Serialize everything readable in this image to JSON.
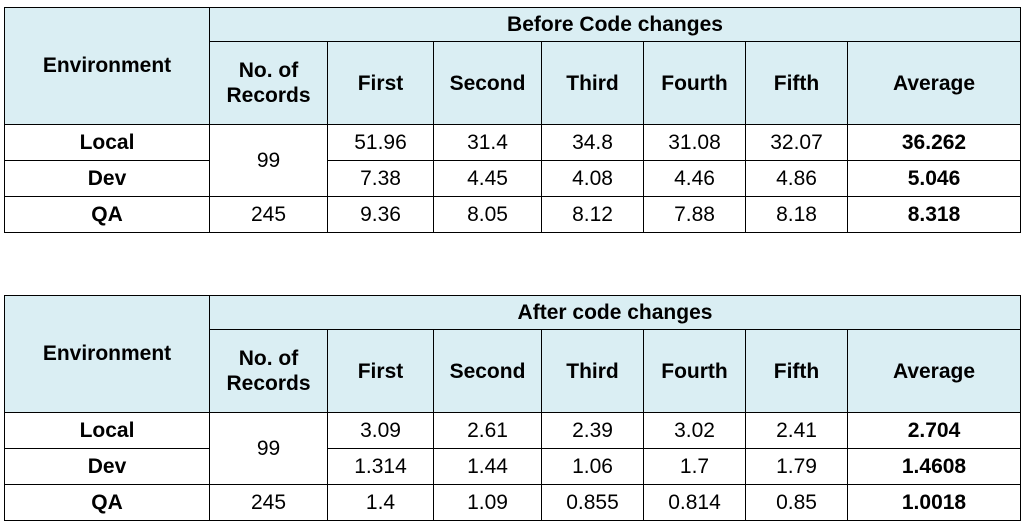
{
  "tables": [
    {
      "title": "Before Code changes",
      "headers": {
        "environment": "Environment",
        "records": "No. of Records",
        "runs": [
          "First",
          "Second",
          "Third",
          "Fourth",
          "Fifth"
        ],
        "average": "Average"
      },
      "shared_records": "99",
      "rows": [
        {
          "env": "Local",
          "values": [
            "51.96",
            "31.4",
            "34.8",
            "31.08",
            "32.07"
          ],
          "average": "36.262"
        },
        {
          "env": "Dev",
          "values": [
            "7.38",
            "4.45",
            "4.08",
            "4.46",
            "4.86"
          ],
          "average": "5.046"
        },
        {
          "env": "QA",
          "records": "245",
          "values": [
            "9.36",
            "8.05",
            "8.12",
            "7.88",
            "8.18"
          ],
          "average": "8.318"
        }
      ]
    },
    {
      "title": "After code changes",
      "headers": {
        "environment": "Environment",
        "records": "No. of Records",
        "runs": [
          "First",
          "Second",
          "Third",
          "Fourth",
          "Fifth"
        ],
        "average": "Average"
      },
      "shared_records": "99",
      "rows": [
        {
          "env": "Local",
          "values": [
            "3.09",
            "2.61",
            "2.39",
            "3.02",
            "2.41"
          ],
          "average": "2.704"
        },
        {
          "env": "Dev",
          "values": [
            "1.314",
            "1.44",
            "1.06",
            "1.7",
            "1.79"
          ],
          "average": "1.4608"
        },
        {
          "env": "QA",
          "records": "245",
          "values": [
            "1.4",
            "1.09",
            "0.855",
            "0.814",
            "0.85"
          ],
          "average": "1.0018"
        }
      ]
    }
  ]
}
